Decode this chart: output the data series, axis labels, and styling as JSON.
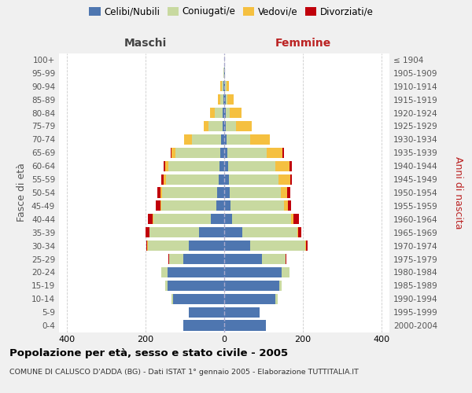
{
  "age_groups": [
    "0-4",
    "5-9",
    "10-14",
    "15-19",
    "20-24",
    "25-29",
    "30-34",
    "35-39",
    "40-44",
    "45-49",
    "50-54",
    "55-59",
    "60-64",
    "65-69",
    "70-74",
    "75-79",
    "80-84",
    "85-89",
    "90-94",
    "95-99",
    "100+"
  ],
  "birth_years": [
    "2000-2004",
    "1995-1999",
    "1990-1994",
    "1985-1989",
    "1980-1984",
    "1975-1979",
    "1970-1974",
    "1965-1969",
    "1960-1964",
    "1955-1959",
    "1950-1954",
    "1945-1949",
    "1940-1944",
    "1935-1939",
    "1930-1934",
    "1925-1929",
    "1920-1924",
    "1915-1919",
    "1910-1914",
    "1905-1909",
    "≤ 1904"
  ],
  "males_celibi": [
    105,
    90,
    130,
    145,
    145,
    105,
    90,
    65,
    35,
    20,
    18,
    14,
    12,
    10,
    8,
    5,
    4,
    3,
    2,
    1,
    0
  ],
  "males_coniugati": [
    0,
    0,
    5,
    5,
    15,
    35,
    105,
    125,
    145,
    140,
    140,
    135,
    130,
    115,
    75,
    35,
    20,
    8,
    5,
    1,
    0
  ],
  "males_vedovi": [
    0,
    0,
    0,
    0,
    0,
    1,
    1,
    1,
    2,
    3,
    5,
    5,
    8,
    10,
    20,
    12,
    12,
    6,
    3,
    1,
    0
  ],
  "males_divorziati": [
    0,
    0,
    0,
    0,
    1,
    2,
    3,
    10,
    12,
    12,
    8,
    6,
    5,
    2,
    0,
    0,
    0,
    0,
    0,
    0,
    0
  ],
  "females_nubili": [
    105,
    90,
    130,
    140,
    145,
    95,
    65,
    45,
    20,
    16,
    14,
    12,
    10,
    8,
    5,
    4,
    3,
    3,
    2,
    1,
    0
  ],
  "females_coniugate": [
    0,
    0,
    5,
    5,
    20,
    60,
    140,
    140,
    150,
    135,
    130,
    125,
    120,
    100,
    60,
    25,
    10,
    5,
    3,
    0,
    0
  ],
  "females_vedove": [
    0,
    0,
    0,
    0,
    1,
    1,
    2,
    3,
    5,
    10,
    15,
    30,
    35,
    40,
    50,
    40,
    30,
    15,
    6,
    1,
    0
  ],
  "females_divorziate": [
    0,
    0,
    0,
    0,
    0,
    1,
    5,
    8,
    14,
    8,
    8,
    5,
    6,
    3,
    1,
    1,
    1,
    0,
    0,
    0,
    0
  ],
  "color_celibi": "#4e76b0",
  "color_coniugati": "#c8d9a0",
  "color_vedovi": "#f5c040",
  "color_divorziati": "#c0000b",
  "title": "Popolazione per età, sesso e stato civile - 2005",
  "subtitle": "COMUNE DI CALUSCO D'ADDA (BG) - Dati ISTAT 1° gennaio 2005 - Elaborazione TUTTITALIA.IT",
  "label_maschi": "Maschi",
  "label_femmine": "Femmine",
  "ylabel_left": "Fasce di età",
  "ylabel_right": "Anni di nascita",
  "legend_labels": [
    "Celibi/Nubili",
    "Coniugati/e",
    "Vedovi/e",
    "Divorziati/e"
  ],
  "bg_color": "#f0f0f0",
  "plot_bg_color": "#ffffff",
  "xlim": 420
}
